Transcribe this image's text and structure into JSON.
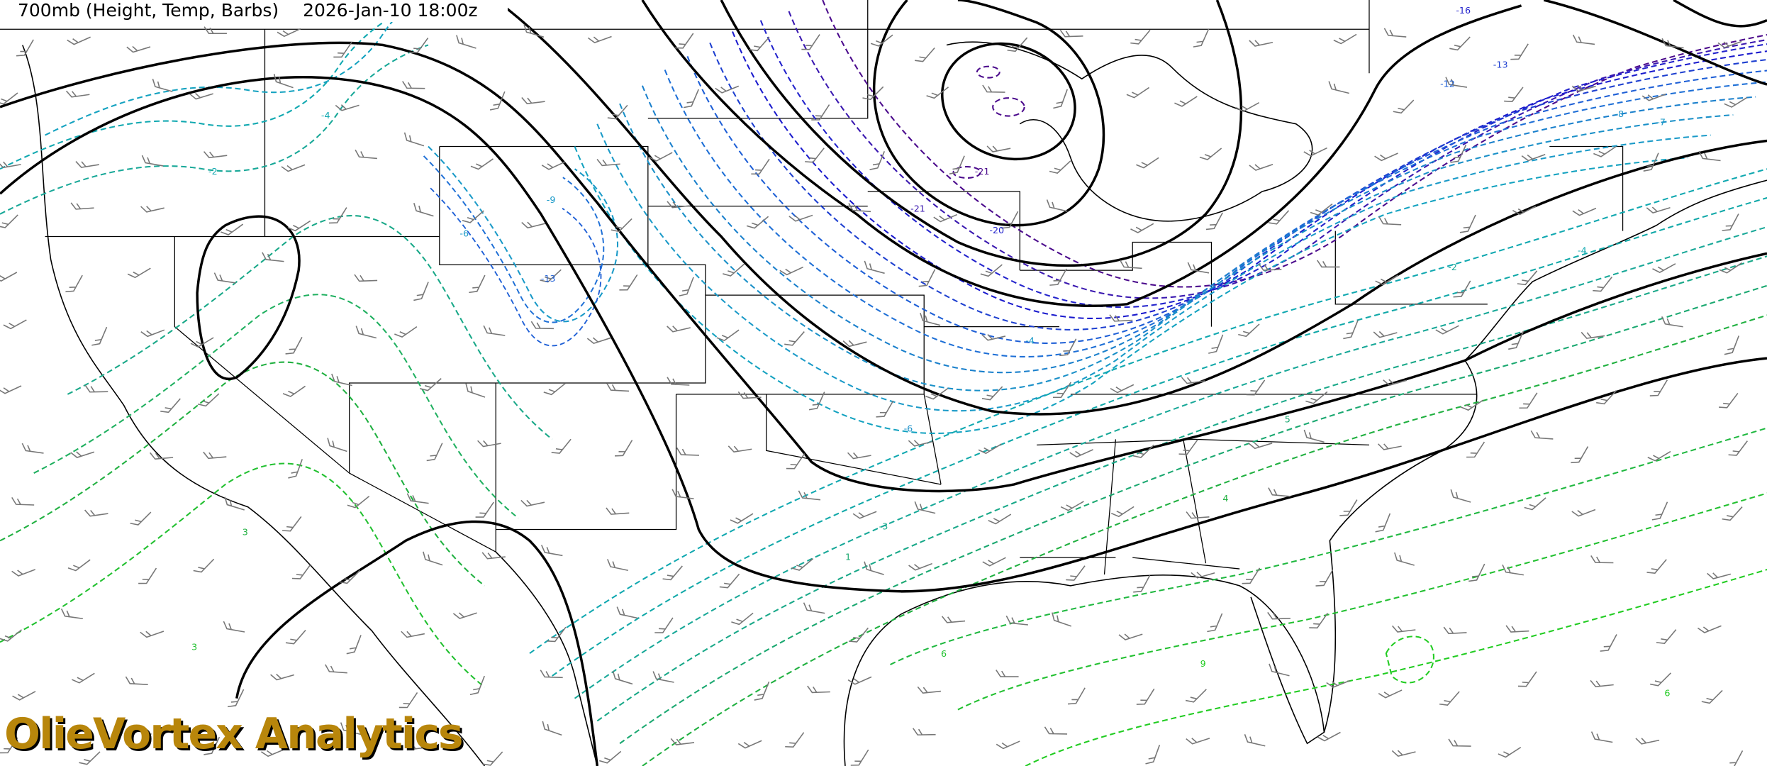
{
  "header": {
    "title": "700mb (Height, Temp, Barbs)",
    "valid_time": "2026-Jan-10 18:00z"
  },
  "watermark": "OlieVortex Analytics",
  "legend": {
    "height_contour_color": "#000000",
    "temp_colors": {
      "very_cold": "#4b0a8c",
      "cold": "#1a1acd",
      "cool": "#1e6fd6",
      "cyan": "#1a9ac8",
      "teal": "#10a8b0",
      "teal_green": "#18a888",
      "green": "#20b040",
      "bright_green": "#22cc22"
    },
    "barb_color": "#777777"
  },
  "contour_labels": [
    "-16",
    "-13",
    "-12",
    "-8",
    "-7",
    "-21",
    "-21",
    "-20",
    "-2",
    "-4",
    "-6",
    "-9",
    "-13",
    "-6",
    "-4",
    "-2",
    "3",
    "3",
    "4",
    "5",
    "6",
    "9",
    "6",
    "-4",
    "-3",
    "1"
  ]
}
